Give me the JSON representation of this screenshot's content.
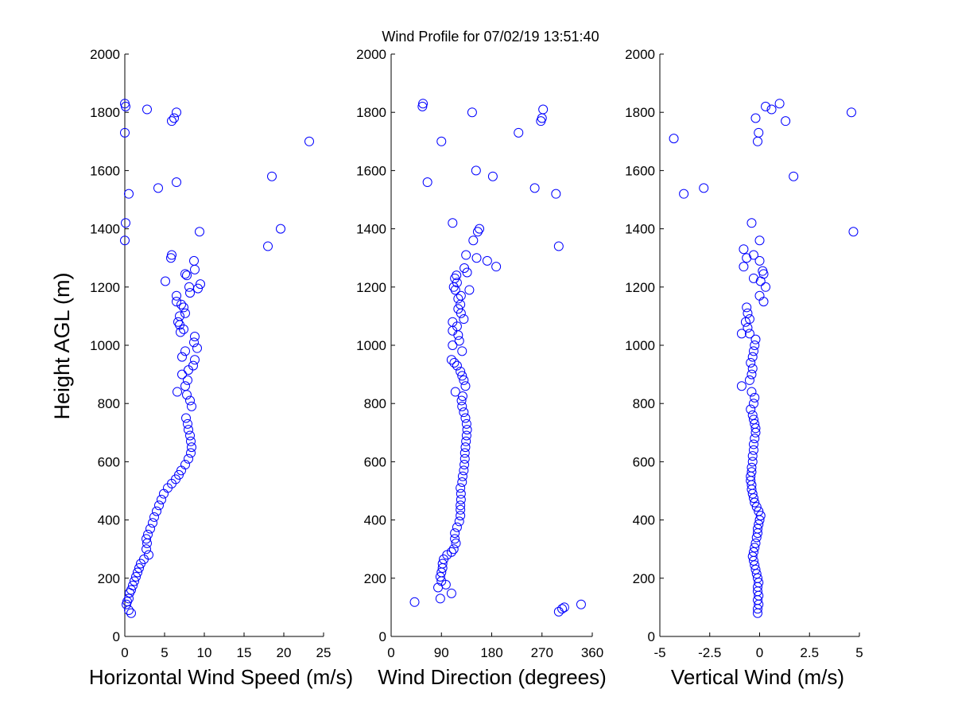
{
  "chart_data": {
    "title": "Wind Profile for  07/02/19 13:51:40",
    "ylabel": "Height AGL (m)",
    "ylim": [
      0,
      2000
    ],
    "yticks": [
      0,
      200,
      400,
      600,
      800,
      1000,
      1200,
      1400,
      1600,
      1800,
      2000
    ],
    "marker_color": "#0000ff",
    "panels": [
      {
        "id": "speed",
        "type": "scatter",
        "xlabel": "Horizontal Wind Speed (m/s)",
        "xlim": [
          0,
          25
        ],
        "xticks": [
          0,
          5,
          10,
          15,
          20,
          25
        ],
        "xtick_labels": [
          "0",
          "5",
          "10",
          "15",
          "20",
          "25"
        ],
        "points": [
          [
            0.8,
            80
          ],
          [
            0.5,
            90
          ],
          [
            0.2,
            110
          ],
          [
            0.3,
            120
          ],
          [
            0.5,
            130
          ],
          [
            0.6,
            150
          ],
          [
            0.8,
            160
          ],
          [
            1.0,
            175
          ],
          [
            1.2,
            190
          ],
          [
            1.4,
            205
          ],
          [
            1.6,
            220
          ],
          [
            1.8,
            235
          ],
          [
            2.0,
            250
          ],
          [
            2.4,
            265
          ],
          [
            3.0,
            280
          ],
          [
            2.7,
            300
          ],
          [
            2.8,
            320
          ],
          [
            2.7,
            335
          ],
          [
            2.9,
            350
          ],
          [
            3.2,
            370
          ],
          [
            3.5,
            390
          ],
          [
            3.7,
            410
          ],
          [
            4.0,
            430
          ],
          [
            4.3,
            450
          ],
          [
            4.6,
            470
          ],
          [
            4.9,
            490
          ],
          [
            5.4,
            510
          ],
          [
            5.9,
            525
          ],
          [
            6.4,
            540
          ],
          [
            6.8,
            555
          ],
          [
            7.1,
            570
          ],
          [
            7.6,
            590
          ],
          [
            8.0,
            610
          ],
          [
            8.3,
            630
          ],
          [
            8.4,
            650
          ],
          [
            8.3,
            670
          ],
          [
            8.2,
            690
          ],
          [
            8.0,
            710
          ],
          [
            7.9,
            730
          ],
          [
            7.7,
            750
          ],
          [
            8.4,
            790
          ],
          [
            8.2,
            810
          ],
          [
            7.8,
            830
          ],
          [
            6.6,
            840
          ],
          [
            7.6,
            860
          ],
          [
            7.9,
            880
          ],
          [
            7.2,
            900
          ],
          [
            8.0,
            915
          ],
          [
            8.6,
            930
          ],
          [
            8.8,
            950
          ],
          [
            7.2,
            960
          ],
          [
            7.6,
            980
          ],
          [
            9.1,
            990
          ],
          [
            8.7,
            1010
          ],
          [
            8.8,
            1030
          ],
          [
            7.0,
            1045
          ],
          [
            7.4,
            1055
          ],
          [
            6.9,
            1070
          ],
          [
            6.7,
            1080
          ],
          [
            6.9,
            1100
          ],
          [
            7.6,
            1110
          ],
          [
            7.4,
            1130
          ],
          [
            7.1,
            1140
          ],
          [
            6.5,
            1150
          ],
          [
            6.5,
            1170
          ],
          [
            8.2,
            1180
          ],
          [
            9.2,
            1195
          ],
          [
            8.1,
            1200
          ],
          [
            9.5,
            1210
          ],
          [
            5.1,
            1220
          ],
          [
            7.8,
            1240
          ],
          [
            7.6,
            1245
          ],
          [
            8.8,
            1260
          ],
          [
            8.7,
            1290
          ],
          [
            5.8,
            1300
          ],
          [
            5.9,
            1310
          ],
          [
            18.0,
            1340
          ],
          [
            0.0,
            1360
          ],
          [
            9.4,
            1390
          ],
          [
            19.6,
            1400
          ],
          [
            0.1,
            1420
          ],
          [
            4.2,
            1540
          ],
          [
            6.5,
            1560
          ],
          [
            18.5,
            1580
          ],
          [
            23.2,
            1700
          ],
          [
            0.0,
            1730
          ],
          [
            5.9,
            1770
          ],
          [
            6.2,
            1780
          ],
          [
            6.5,
            1800
          ],
          [
            2.8,
            1810
          ],
          [
            0.1,
            1820
          ],
          [
            0.0,
            1830
          ],
          [
            0.5,
            1520
          ]
        ]
      },
      {
        "id": "direction",
        "type": "scatter",
        "xlabel": "Wind Direction (degrees)",
        "xlim": [
          0,
          360
        ],
        "xticks": [
          0,
          90,
          180,
          270,
          360
        ],
        "xtick_labels": [
          "0",
          "90",
          "180",
          "270",
          "360"
        ],
        "points": [
          [
            42,
            118
          ],
          [
            88,
            130
          ],
          [
            108,
            148
          ],
          [
            84,
            168
          ],
          [
            98,
            178
          ],
          [
            90,
            190
          ],
          [
            88,
            205
          ],
          [
            90,
            220
          ],
          [
            92,
            235
          ],
          [
            92,
            250
          ],
          [
            94,
            265
          ],
          [
            100,
            280
          ],
          [
            108,
            290
          ],
          [
            112,
            300
          ],
          [
            116,
            320
          ],
          [
            114,
            335
          ],
          [
            114,
            355
          ],
          [
            118,
            375
          ],
          [
            122,
            395
          ],
          [
            124,
            415
          ],
          [
            124,
            435
          ],
          [
            124,
            450
          ],
          [
            125,
            470
          ],
          [
            125,
            490
          ],
          [
            124,
            510
          ],
          [
            127,
            530
          ],
          [
            128,
            550
          ],
          [
            130,
            570
          ],
          [
            131,
            590
          ],
          [
            132,
            610
          ],
          [
            132,
            630
          ],
          [
            133,
            650
          ],
          [
            134,
            670
          ],
          [
            135,
            690
          ],
          [
            136,
            710
          ],
          [
            135,
            730
          ],
          [
            133,
            750
          ],
          [
            130,
            770
          ],
          [
            127,
            790
          ],
          [
            126,
            810
          ],
          [
            128,
            825
          ],
          [
            115,
            840
          ],
          [
            133,
            860
          ],
          [
            130,
            880
          ],
          [
            127,
            895
          ],
          [
            124,
            910
          ],
          [
            118,
            930
          ],
          [
            108,
            950
          ],
          [
            113,
            940
          ],
          [
            127,
            980
          ],
          [
            110,
            1000
          ],
          [
            122,
            1015
          ],
          [
            120,
            1035
          ],
          [
            110,
            1050
          ],
          [
            118,
            1065
          ],
          [
            110,
            1080
          ],
          [
            130,
            1090
          ],
          [
            125,
            1110
          ],
          [
            120,
            1125
          ],
          [
            124,
            1140
          ],
          [
            120,
            1160
          ],
          [
            125,
            1170
          ],
          [
            115,
            1190
          ],
          [
            140,
            1190
          ],
          [
            112,
            1200
          ],
          [
            118,
            1215
          ],
          [
            117,
            1240
          ],
          [
            114,
            1230
          ],
          [
            136,
            1250
          ],
          [
            131,
            1265
          ],
          [
            188,
            1270
          ],
          [
            172,
            1290
          ],
          [
            153,
            1300
          ],
          [
            134,
            1310
          ],
          [
            300,
            1340
          ],
          [
            147,
            1360
          ],
          [
            155,
            1390
          ],
          [
            158,
            1400
          ],
          [
            110,
            1420
          ],
          [
            295,
            1520
          ],
          [
            257,
            1540
          ],
          [
            65,
            1560
          ],
          [
            182,
            1580
          ],
          [
            152,
            1600
          ],
          [
            90,
            1700
          ],
          [
            228,
            1730
          ],
          [
            268,
            1770
          ],
          [
            270,
            1780
          ],
          [
            145,
            1800
          ],
          [
            272,
            1810
          ],
          [
            56,
            1820
          ],
          [
            57,
            1830
          ],
          [
            300,
            85
          ],
          [
            306,
            95
          ],
          [
            310,
            100
          ],
          [
            340,
            110
          ]
        ]
      },
      {
        "id": "vertical",
        "type": "scatter",
        "xlabel": "Vertical Wind (m/s)",
        "xlim": [
          -5,
          5
        ],
        "xticks": [
          -5,
          -2.5,
          0,
          2.5,
          5
        ],
        "xtick_labels": [
          "-5",
          "-2.5",
          "0",
          "2.5",
          "5"
        ],
        "points": [
          [
            -0.1,
            80
          ],
          [
            -0.1,
            95
          ],
          [
            -0.05,
            110
          ],
          [
            -0.1,
            125
          ],
          [
            -0.05,
            140
          ],
          [
            -0.1,
            155
          ],
          [
            -0.1,
            170
          ],
          [
            -0.05,
            185
          ],
          [
            -0.1,
            200
          ],
          [
            -0.15,
            215
          ],
          [
            -0.2,
            230
          ],
          [
            -0.25,
            245
          ],
          [
            -0.3,
            260
          ],
          [
            -0.35,
            275
          ],
          [
            -0.3,
            290
          ],
          [
            -0.25,
            305
          ],
          [
            -0.2,
            320
          ],
          [
            -0.15,
            340
          ],
          [
            -0.1,
            355
          ],
          [
            -0.1,
            370
          ],
          [
            -0.05,
            385
          ],
          [
            0.0,
            400
          ],
          [
            0.05,
            415
          ],
          [
            -0.05,
            430
          ],
          [
            -0.15,
            445
          ],
          [
            -0.25,
            460
          ],
          [
            -0.3,
            475
          ],
          [
            -0.35,
            490
          ],
          [
            -0.4,
            505
          ],
          [
            -0.4,
            520
          ],
          [
            -0.45,
            535
          ],
          [
            -0.45,
            550
          ],
          [
            -0.4,
            565
          ],
          [
            -0.4,
            580
          ],
          [
            -0.35,
            600
          ],
          [
            -0.35,
            620
          ],
          [
            -0.3,
            640
          ],
          [
            -0.3,
            660
          ],
          [
            -0.25,
            680
          ],
          [
            -0.2,
            700
          ],
          [
            -0.2,
            715
          ],
          [
            -0.25,
            730
          ],
          [
            -0.3,
            745
          ],
          [
            -0.35,
            760
          ],
          [
            -0.45,
            780
          ],
          [
            -0.3,
            800
          ],
          [
            -0.25,
            820
          ],
          [
            -0.4,
            840
          ],
          [
            -0.9,
            860
          ],
          [
            -0.5,
            880
          ],
          [
            -0.4,
            900
          ],
          [
            -0.35,
            920
          ],
          [
            -0.45,
            940
          ],
          [
            -0.35,
            960
          ],
          [
            -0.3,
            980
          ],
          [
            -0.25,
            1000
          ],
          [
            -0.2,
            1020
          ],
          [
            -0.5,
            1040
          ],
          [
            -0.9,
            1040
          ],
          [
            -0.6,
            1060
          ],
          [
            -0.7,
            1080
          ],
          [
            -0.5,
            1090
          ],
          [
            -0.6,
            1110
          ],
          [
            -0.65,
            1130
          ],
          [
            0.2,
            1150
          ],
          [
            0.0,
            1170
          ],
          [
            0.3,
            1200
          ],
          [
            0.05,
            1220
          ],
          [
            -0.3,
            1230
          ],
          [
            0.2,
            1245
          ],
          [
            0.15,
            1255
          ],
          [
            -0.8,
            1270
          ],
          [
            0.0,
            1290
          ],
          [
            -0.65,
            1300
          ],
          [
            -0.3,
            1310
          ],
          [
            -0.8,
            1330
          ],
          [
            0.0,
            1360
          ],
          [
            4.7,
            1390
          ],
          [
            -0.4,
            1420
          ],
          [
            -3.8,
            1520
          ],
          [
            -2.8,
            1540
          ],
          [
            1.7,
            1580
          ],
          [
            -0.1,
            1700
          ],
          [
            -4.3,
            1710
          ],
          [
            -0.05,
            1730
          ],
          [
            1.3,
            1770
          ],
          [
            -0.2,
            1780
          ],
          [
            4.6,
            1800
          ],
          [
            0.6,
            1810
          ],
          [
            0.3,
            1820
          ],
          [
            1.0,
            1830
          ]
        ]
      }
    ]
  }
}
